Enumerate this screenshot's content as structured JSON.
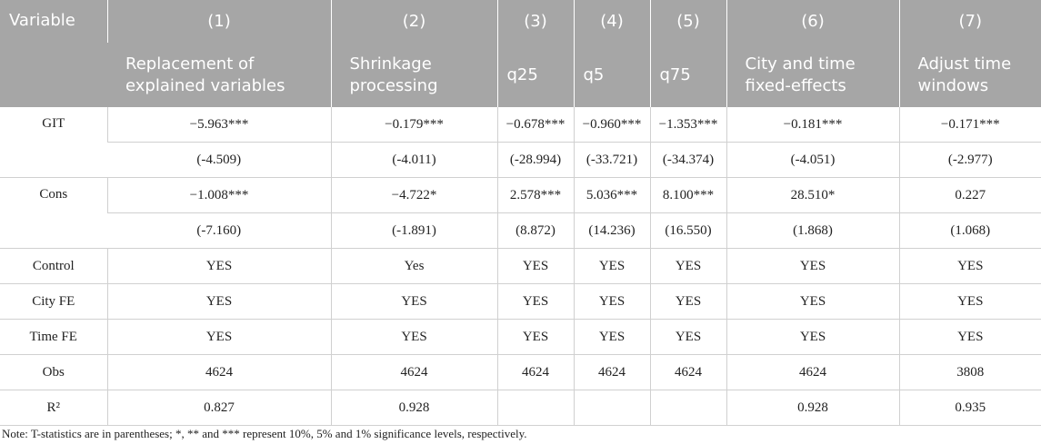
{
  "header": {
    "variable_label": "Variable",
    "columns": [
      {
        "num": "(1)",
        "label_line1": "Replacement of",
        "label_line2": "explained variables"
      },
      {
        "num": "(2)",
        "label_line1": "Shrinkage",
        "label_line2": "processing"
      },
      {
        "num": "(3)",
        "label_line1": "q25",
        "label_line2": ""
      },
      {
        "num": "(4)",
        "label_line1": "q5",
        "label_line2": ""
      },
      {
        "num": "(5)",
        "label_line1": "q75",
        "label_line2": ""
      },
      {
        "num": "(6)",
        "label_line1": "City and time",
        "label_line2": "fixed-effects"
      },
      {
        "num": "(7)",
        "label_line1": "Adjust time",
        "label_line2": "windows"
      }
    ]
  },
  "rows": {
    "git": {
      "label": "GIT",
      "coef": [
        "−5.963***",
        "−0.179***",
        "−0.678***",
        "−0.960***",
        "−1.353***",
        "−0.181***",
        "−0.171***"
      ],
      "t": [
        "(-4.509)",
        "(-4.011)",
        "(-28.994)",
        "(-33.721)",
        "(-34.374)",
        "(-4.051)",
        "(-2.977)"
      ]
    },
    "cons": {
      "label": "Cons",
      "coef": [
        "−1.008***",
        "−4.722*",
        "2.578***",
        "5.036***",
        "8.100***",
        "28.510*",
        "0.227"
      ],
      "t": [
        "(-7.160)",
        "(-1.891)",
        "(8.872)",
        "(14.236)",
        "(16.550)",
        "(1.868)",
        "(1.068)"
      ]
    },
    "control": {
      "label": "Control",
      "values": [
        "YES",
        "Yes",
        "YES",
        "YES",
        "YES",
        "YES",
        "YES"
      ]
    },
    "city_fe": {
      "label": "City FE",
      "values": [
        "YES",
        "YES",
        "YES",
        "YES",
        "YES",
        "YES",
        "YES"
      ]
    },
    "time_fe": {
      "label": "Time FE",
      "values": [
        "YES",
        "YES",
        "YES",
        "YES",
        "YES",
        "YES",
        "YES"
      ]
    },
    "obs": {
      "label": "Obs",
      "values": [
        "4624",
        "4624",
        "4624",
        "4624",
        "4624",
        "4624",
        "3808"
      ]
    },
    "r2": {
      "label": "R²",
      "values": [
        "0.827",
        "0.928",
        "",
        "",
        "",
        "0.928",
        "0.935"
      ]
    }
  },
  "note": "Note: T-statistics are in parentheses; *, ** and *** represent 10%, 5% and 1% significance levels, respectively."
}
